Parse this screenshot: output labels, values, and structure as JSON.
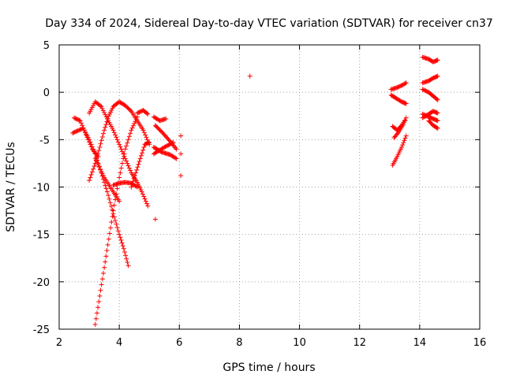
{
  "chart_data": {
    "type": "scatter",
    "title": "Day 334 of 2024, Sidereal Day-to-day VTEC variation (SDTVAR) for receiver cn37",
    "xlabel": "GPS time / hours",
    "ylabel": "SDTVAR / TECUs",
    "xlim": [
      2,
      16
    ],
    "ylim": [
      -25,
      5
    ],
    "xticks": [
      2,
      4,
      6,
      8,
      10,
      12,
      14,
      16
    ],
    "yticks": [
      -25,
      -20,
      -15,
      -10,
      -5,
      0,
      5
    ],
    "grid": true,
    "marker": "+",
    "marker_color": "#ff0000",
    "tracks": [
      [
        [
          2.45,
          -4.3
        ],
        [
          2.8,
          -3.8
        ],
        [
          3.0,
          -5.0
        ],
        [
          3.2,
          -6.5
        ],
        [
          3.4,
          -8.5
        ],
        [
          3.6,
          -10.5
        ],
        [
          3.8,
          -12.8
        ],
        [
          4.0,
          -15.0
        ],
        [
          4.15,
          -16.5
        ],
        [
          4.3,
          -18.3
        ]
      ],
      [
        [
          2.5,
          -2.7
        ],
        [
          2.7,
          -3.0
        ],
        [
          2.9,
          -4.5
        ],
        [
          3.1,
          -6.0
        ],
        [
          3.3,
          -6.8
        ]
      ],
      [
        [
          3.2,
          -24.5
        ],
        [
          3.35,
          -21.5
        ],
        [
          3.5,
          -18.5
        ],
        [
          3.65,
          -15.5
        ],
        [
          3.8,
          -12.5
        ],
        [
          4.0,
          -9.0
        ],
        [
          4.2,
          -6.0
        ],
        [
          4.4,
          -4.0
        ],
        [
          4.6,
          -2.6
        ]
      ],
      [
        [
          3.2,
          -7.0
        ],
        [
          3.5,
          -9.0
        ],
        [
          3.8,
          -10.5
        ],
        [
          4.0,
          -11.5
        ]
      ],
      [
        [
          3.0,
          -9.3
        ],
        [
          3.2,
          -7.5
        ],
        [
          3.35,
          -5.8
        ],
        [
          3.5,
          -4.0
        ],
        [
          3.65,
          -2.5
        ],
        [
          3.8,
          -1.5
        ],
        [
          4.0,
          -1.0
        ],
        [
          4.2,
          -1.4
        ],
        [
          4.4,
          -2.0
        ],
        [
          4.6,
          -3.0
        ],
        [
          4.8,
          -4.0
        ],
        [
          5.0,
          -5.5
        ]
      ],
      [
        [
          3.0,
          -2.2
        ],
        [
          3.2,
          -1.0
        ],
        [
          3.4,
          -1.5
        ],
        [
          3.6,
          -2.8
        ],
        [
          3.8,
          -4.0
        ],
        [
          4.0,
          -5.5
        ],
        [
          4.2,
          -7.0
        ],
        [
          4.4,
          -8.5
        ],
        [
          4.6,
          -9.5
        ],
        [
          4.75,
          -10.5
        ],
        [
          4.95,
          -12.0
        ]
      ],
      [
        [
          3.8,
          -9.8
        ],
        [
          4.0,
          -9.6
        ],
        [
          4.2,
          -9.5
        ],
        [
          4.4,
          -9.6
        ],
        [
          4.6,
          -10.0
        ]
      ],
      [
        [
          4.4,
          -10.0
        ],
        [
          4.55,
          -8.5
        ],
        [
          4.7,
          -7.0
        ],
        [
          4.85,
          -5.5
        ],
        [
          5.0,
          -5.3
        ]
      ],
      [
        [
          4.6,
          -2.2
        ],
        [
          4.8,
          -1.9
        ],
        [
          4.95,
          -2.3
        ]
      ],
      [
        [
          5.15,
          -2.6
        ],
        [
          5.35,
          -3.0
        ],
        [
          5.55,
          -2.8
        ]
      ],
      [
        [
          5.15,
          -6.5
        ],
        [
          5.5,
          -5.8
        ],
        [
          5.8,
          -5.3
        ]
      ],
      [
        [
          5.15,
          -5.8
        ],
        [
          5.4,
          -6.3
        ],
        [
          5.7,
          -6.6
        ],
        [
          5.9,
          -7.0
        ]
      ],
      [
        [
          5.2,
          -3.5
        ],
        [
          5.45,
          -4.3
        ],
        [
          5.7,
          -5.2
        ],
        [
          5.9,
          -6.0
        ]
      ],
      [
        [
          6.05,
          -4.6
        ]
      ],
      [
        [
          6.05,
          -6.5
        ]
      ],
      [
        [
          6.05,
          -8.8
        ]
      ],
      [
        [
          5.2,
          -13.4
        ]
      ],
      [
        [
          8.35,
          1.7
        ]
      ],
      [
        [
          13.05,
          0.3
        ],
        [
          13.25,
          0.5
        ],
        [
          13.45,
          0.8
        ],
        [
          13.55,
          1.0
        ]
      ],
      [
        [
          13.05,
          -0.3
        ],
        [
          13.2,
          -0.6
        ],
        [
          13.4,
          -1.0
        ],
        [
          13.55,
          -1.2
        ]
      ],
      [
        [
          13.1,
          -3.6
        ],
        [
          13.25,
          -4.0
        ],
        [
          13.4,
          -3.5
        ],
        [
          13.5,
          -3.0
        ]
      ],
      [
        [
          13.15,
          -4.8
        ],
        [
          13.3,
          -4.2
        ],
        [
          13.45,
          -3.4
        ],
        [
          13.55,
          -2.7
        ]
      ],
      [
        [
          13.1,
          -7.7
        ],
        [
          13.25,
          -6.8
        ],
        [
          13.4,
          -5.8
        ],
        [
          13.55,
          -4.6
        ]
      ],
      [
        [
          14.1,
          3.7
        ],
        [
          14.3,
          3.5
        ],
        [
          14.45,
          3.2
        ],
        [
          14.6,
          3.4
        ]
      ],
      [
        [
          14.1,
          1.0
        ],
        [
          14.3,
          1.2
        ],
        [
          14.45,
          1.5
        ],
        [
          14.6,
          1.7
        ]
      ],
      [
        [
          14.1,
          0.3
        ],
        [
          14.3,
          0.0
        ],
        [
          14.45,
          -0.4
        ],
        [
          14.6,
          -0.8
        ]
      ],
      [
        [
          14.1,
          -2.3
        ],
        [
          14.3,
          -2.6
        ],
        [
          14.45,
          -2.8
        ],
        [
          14.6,
          -3.0
        ]
      ],
      [
        [
          14.1,
          -2.7
        ],
        [
          14.3,
          -2.3
        ],
        [
          14.45,
          -2.0
        ],
        [
          14.6,
          -2.2
        ]
      ],
      [
        [
          14.3,
          -3.0
        ],
        [
          14.45,
          -3.5
        ],
        [
          14.6,
          -3.8
        ]
      ]
    ]
  }
}
